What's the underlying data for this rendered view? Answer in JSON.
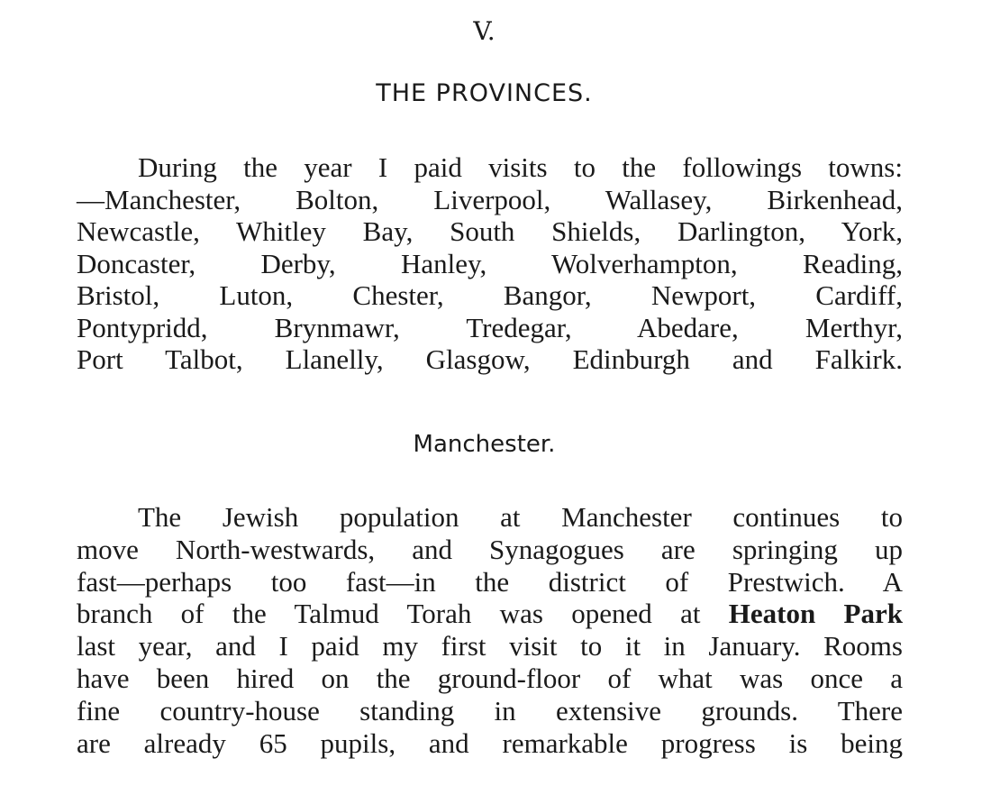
{
  "chapter_numeral": "V.",
  "chapter_title": "THE PROVINCES.",
  "paragraph1_lines": [
    "During the year I paid visits to the followings towns:",
    "—Manchester, Bolton, Liverpool, Wallasey, Birkenhead,",
    "Newcastle, Whitley Bay, South Shields, Darlington, York,",
    "Doncaster, Derby, Hanley, Wolverhampton, Reading,",
    "Bristol, Luton, Chester, Bangor, Newport, Cardiff,",
    "Pontypridd, Brynmawr, Tredegar, Abedare, Merthyr,",
    "Port Talbot, Llanelly, Glasgow, Edinburgh and Falkirk."
  ],
  "section_heading": "Manchester.",
  "paragraph2": {
    "line1": "The Jewish population at Manchester continues to",
    "line2": "move North-westwards, and Synagogues are springing up",
    "line3": "fast—perhaps too fast—in the district of Prestwich.  A",
    "line4_before": "branch of the Talmud Torah was opened at ",
    "line4_bold": "Heaton Park",
    "line5": "last year, and I paid my first visit to it in January.  Rooms",
    "line6": "have been hired on the ground-floor of what was once a",
    "line7": "fine country-house standing in extensive grounds.  There",
    "line8": "are already 65 pupils, and remarkable progress is being"
  }
}
